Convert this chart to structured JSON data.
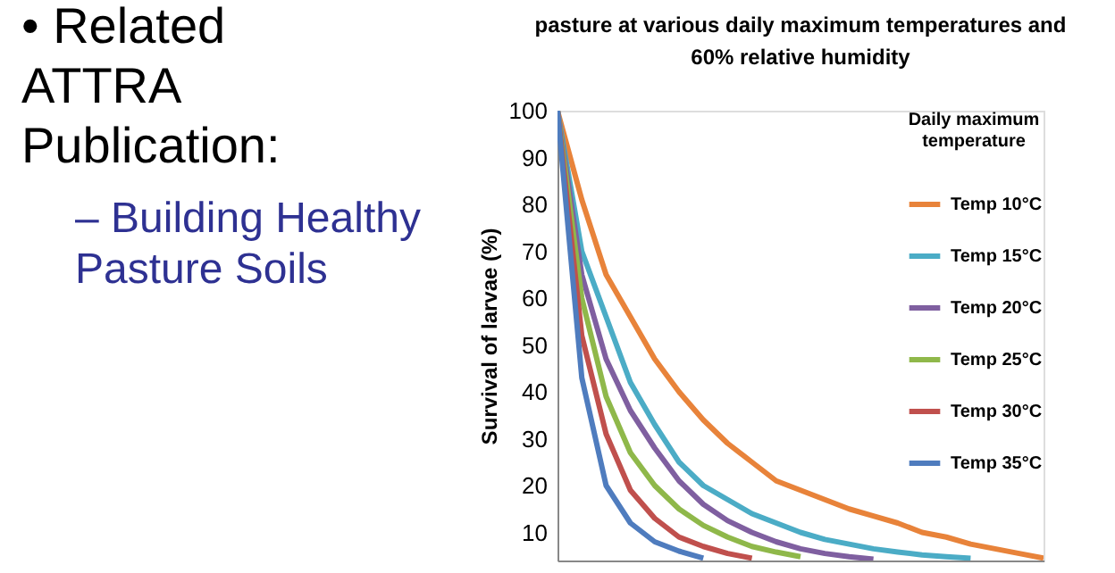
{
  "chart_data": {
    "type": "line",
    "title": [
      "pasture at various daily maximum temperatures and",
      "60% relative humidity"
    ],
    "ylabel": "Survival of larvae (%)",
    "legend_title": "Daily maximum temperature",
    "categories": [
      null,
      null,
      null,
      null,
      null,
      null,
      null,
      null,
      null,
      null,
      null,
      null,
      null,
      null,
      null,
      null,
      null,
      null,
      null,
      null,
      null
    ],
    "series": [
      {
        "name": "Temp 10°C",
        "color": "#e8833a",
        "values": [
          100,
          81,
          65,
          56,
          47,
          40,
          34,
          29,
          25,
          21,
          19,
          17,
          15,
          13.5,
          12,
          10,
          9,
          7.5,
          6.5,
          5.5,
          4.5
        ]
      },
      {
        "name": "Temp 15°C",
        "color": "#4bacc6",
        "values": [
          100,
          70,
          56,
          42,
          33,
          25,
          20,
          17,
          14,
          12,
          10,
          8.5,
          7.5,
          6.5,
          5.8,
          5.2,
          4.8,
          4.5,
          null,
          null,
          null
        ]
      },
      {
        "name": "Temp 20°C",
        "color": "#7f5fa0",
        "values": [
          100,
          65,
          47,
          36,
          28,
          21,
          16,
          12.5,
          10,
          8,
          6.5,
          5.5,
          4.8,
          4.3,
          null,
          null,
          null,
          null,
          null,
          null,
          null
        ]
      },
      {
        "name": "Temp 25°C",
        "color": "#8fb84a",
        "values": [
          100,
          60,
          39,
          27,
          20,
          15,
          11.5,
          9,
          7,
          5.8,
          4.8,
          null,
          null,
          null,
          null,
          null,
          null,
          null,
          null,
          null,
          null
        ]
      },
      {
        "name": "Temp 30°C",
        "color": "#c0504d",
        "values": [
          100,
          52,
          31,
          19,
          13,
          9,
          7,
          5.5,
          4.5,
          null,
          null,
          null,
          null,
          null,
          null,
          null,
          null,
          null,
          null,
          null,
          null
        ]
      },
      {
        "name": "Temp 35°C",
        "color": "#4f7cbe",
        "values": [
          100,
          43,
          20,
          12,
          8,
          6,
          4.5,
          null,
          null,
          null,
          null,
          null,
          null,
          null,
          null,
          null,
          null,
          null,
          null,
          null,
          null
        ]
      }
    ],
    "ylim": [
      4,
      100
    ],
    "yticks": [
      10,
      20,
      30,
      40,
      50,
      60,
      70,
      80,
      90,
      100
    ],
    "grid": false,
    "legend": "top right",
    "marker": "none",
    "line_style": "solid",
    "tick_labels": "y",
    "annotations": [
      "• Related ATTRA Publication:",
      "– Building Healthy Pasture Soils"
    ]
  }
}
